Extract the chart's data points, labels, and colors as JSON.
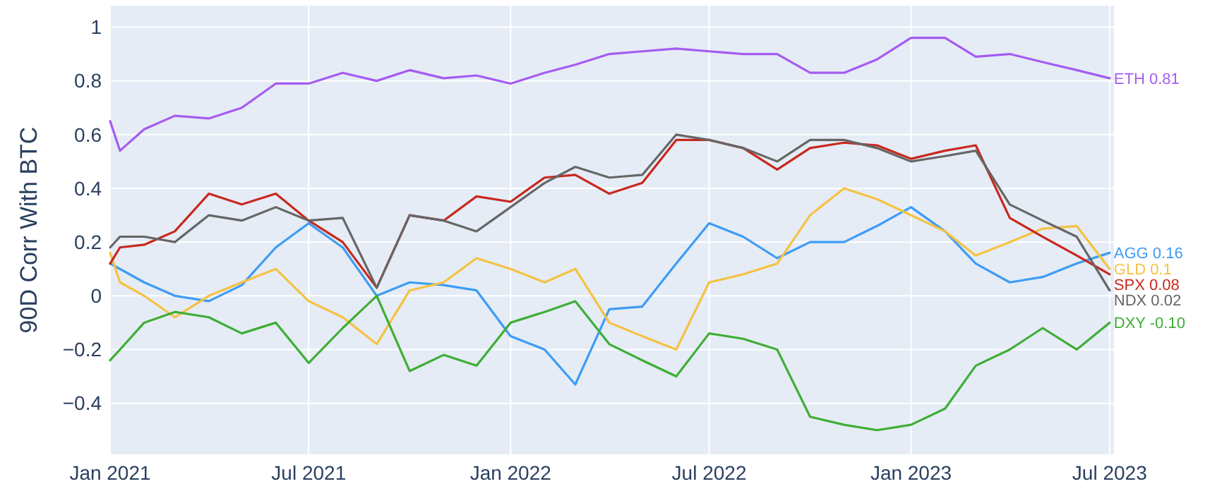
{
  "chart_data": {
    "type": "line",
    "ylabel": "90D Corr With BTC",
    "x": [
      "2021-01",
      "2021-01-10",
      "2021-02",
      "2021-03",
      "2021-04",
      "2021-05",
      "2021-06",
      "2021-07",
      "2021-08",
      "2021-09",
      "2021-10",
      "2021-11",
      "2021-12",
      "2022-01",
      "2022-02",
      "2022-03",
      "2022-04",
      "2022-05",
      "2022-06",
      "2022-07",
      "2022-08",
      "2022-09",
      "2022-10",
      "2022-11",
      "2022-12",
      "2023-01",
      "2023-02",
      "2023-03",
      "2023-04",
      "2023-05",
      "2023-06",
      "2023-07"
    ],
    "series": [
      {
        "name": "ETH 0.81",
        "color": "#a55bf0",
        "values": [
          0.65,
          0.54,
          0.62,
          0.67,
          0.66,
          0.7,
          0.79,
          0.79,
          0.83,
          0.8,
          0.84,
          0.81,
          0.82,
          0.79,
          0.83,
          0.86,
          0.9,
          0.91,
          0.92,
          0.91,
          0.9,
          0.9,
          0.83,
          0.83,
          0.88,
          0.96,
          0.96,
          0.89,
          0.9,
          0.87,
          0.84,
          0.81
        ]
      },
      {
        "name": "AGG 0.16",
        "color": "#3d9cf5",
        "values": [
          0.12,
          0.1,
          0.05,
          0.0,
          -0.02,
          0.04,
          0.18,
          0.27,
          0.18,
          0.0,
          0.05,
          0.04,
          0.02,
          -0.15,
          -0.2,
          -0.33,
          -0.05,
          -0.04,
          0.12,
          0.27,
          0.22,
          0.14,
          0.2,
          0.2,
          0.26,
          0.33,
          0.24,
          0.12,
          0.05,
          0.07,
          0.12,
          0.16
        ]
      },
      {
        "name": "GLD 0.1",
        "color": "#f5c242",
        "values": [
          0.16,
          0.05,
          0.0,
          -0.08,
          0.0,
          0.05,
          0.1,
          -0.02,
          -0.08,
          -0.18,
          0.02,
          0.05,
          0.14,
          0.1,
          0.05,
          0.1,
          -0.1,
          -0.15,
          -0.2,
          0.05,
          0.08,
          0.12,
          0.3,
          0.4,
          0.36,
          0.3,
          0.24,
          0.15,
          0.2,
          0.25,
          0.26,
          0.1
        ]
      },
      {
        "name": "SPX 0.08",
        "color": "#c8281e",
        "values": [
          0.12,
          0.18,
          0.19,
          0.24,
          0.38,
          0.34,
          0.38,
          0.28,
          0.2,
          0.03,
          0.3,
          0.28,
          0.37,
          0.35,
          0.44,
          0.45,
          0.38,
          0.42,
          0.58,
          0.58,
          0.55,
          0.47,
          0.55,
          0.57,
          0.56,
          0.51,
          0.54,
          0.56,
          0.29,
          0.22,
          0.15,
          0.08
        ]
      },
      {
        "name": "NDX 0.02",
        "color": "#666666",
        "values": [
          0.18,
          0.22,
          0.22,
          0.2,
          0.3,
          0.28,
          0.33,
          0.28,
          0.29,
          0.03,
          0.3,
          0.28,
          0.24,
          0.33,
          0.42,
          0.48,
          0.44,
          0.45,
          0.6,
          0.58,
          0.55,
          0.5,
          0.58,
          0.58,
          0.55,
          0.5,
          0.52,
          0.54,
          0.34,
          0.28,
          0.22,
          0.02
        ]
      },
      {
        "name": "DXY -0.10",
        "color": "#3fae36",
        "values": [
          -0.24,
          -0.2,
          -0.1,
          -0.06,
          -0.08,
          -0.14,
          -0.1,
          -0.25,
          -0.12,
          0.0,
          -0.28,
          -0.22,
          -0.26,
          -0.1,
          -0.06,
          -0.02,
          -0.18,
          -0.24,
          -0.3,
          -0.14,
          -0.16,
          -0.2,
          -0.45,
          -0.48,
          -0.5,
          -0.48,
          -0.42,
          -0.26,
          -0.2,
          -0.12,
          -0.2,
          -0.1
        ]
      }
    ],
    "xlim": [
      "2021-01",
      "2023-07-05"
    ],
    "xticks": [
      {
        "value": "2021-01",
        "label": "Jan 2021"
      },
      {
        "value": "2021-07",
        "label": "Jul 2021"
      },
      {
        "value": "2022-01",
        "label": "Jan 2022"
      },
      {
        "value": "2022-07",
        "label": "Jul 2022"
      },
      {
        "value": "2023-01",
        "label": "Jan 2023"
      },
      {
        "value": "2023-07",
        "label": "Jul 2023"
      }
    ],
    "ylim": [
      -0.59,
      1.08
    ],
    "yticks": [
      {
        "value": -0.4,
        "label": "−0.4"
      },
      {
        "value": -0.2,
        "label": "−0.2"
      },
      0,
      0.2,
      0.4,
      0.6,
      0.8,
      1
    ],
    "grid": true,
    "legend": false,
    "line_style": "solid",
    "marker": "none"
  }
}
